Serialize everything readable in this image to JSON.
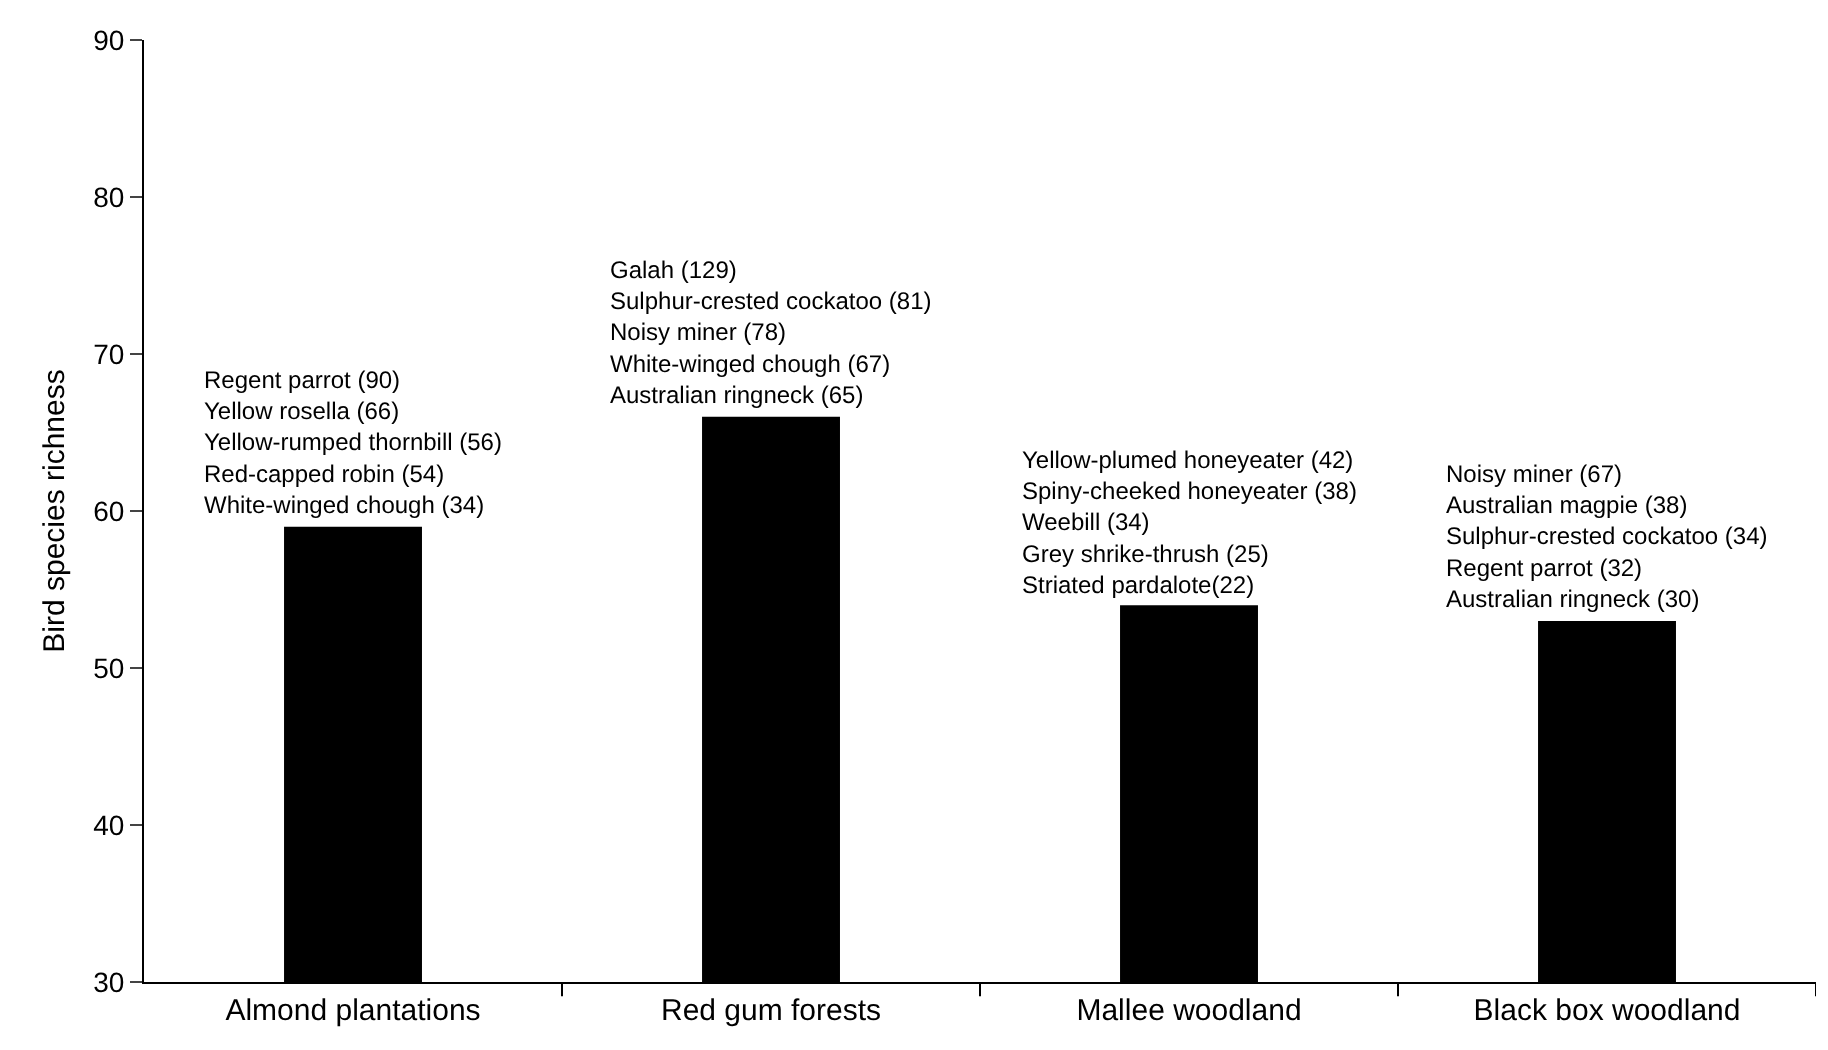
{
  "chart_data": {
    "type": "bar",
    "ylabel": "Bird species richness",
    "categories": [
      "Almond plantations",
      "Red gum forests",
      "Mallee woodland",
      "Black box woodland"
    ],
    "values": [
      59,
      66,
      54,
      53
    ],
    "color": "#000000",
    "ylim": [
      30,
      90
    ],
    "yticks": [
      30,
      40,
      50,
      60,
      70,
      80,
      90
    ],
    "grid": false,
    "annotations": [
      {
        "text": "Regent parrot (90)\nYellow rosella (66)\nYellow-rumped thornbill (56)\nRed-capped robin (54)\nWhite-winged chough (34)",
        "x": "Almond plantations",
        "y": 59
      },
      {
        "text": "Galah (129)\nSulphur-crested cockatoo (81)\nNoisy miner (78)\nWhite-winged chough (67)\nAustralian ringneck (65)",
        "x": "Red gum forests",
        "y": 66
      },
      {
        "text": "Yellow-plumed honeyeater (42)\nSpiny-cheeked honeyeater (38)\nWeebill (34)\nGrey shrike-thrush (25)\nStriated pardalote(22)",
        "x": "Mallee woodland",
        "y": 54
      },
      {
        "text": "Noisy miner (67)\nAustralian magpie (38)\nSulphur-crested cockatoo (34)\nRegent parrot (32)\nAustralian ringneck (30)",
        "x": "Black box woodland",
        "y": 53
      }
    ]
  }
}
